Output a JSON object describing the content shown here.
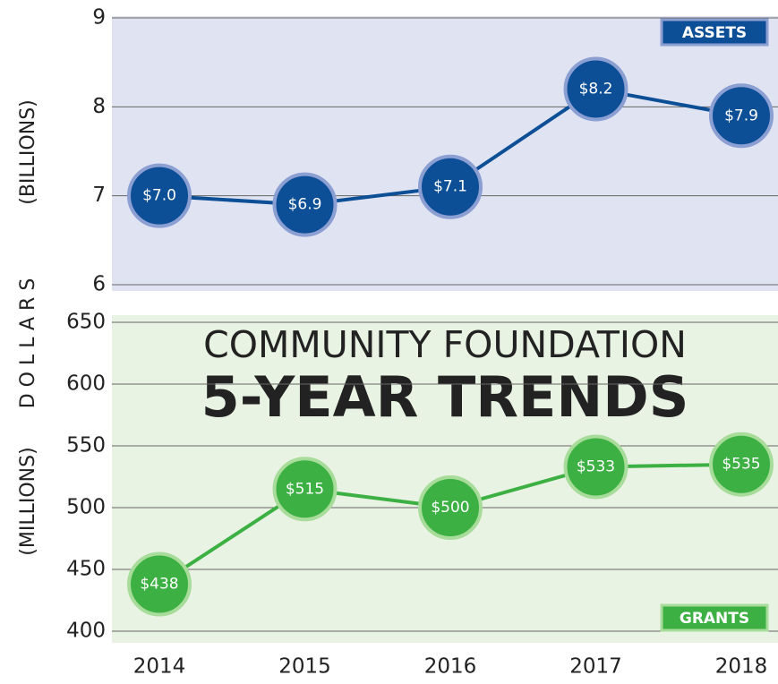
{
  "chart_data": [
    {
      "type": "line",
      "ylabel": "(BILLIONS)",
      "ylabel_common": "DOLLARS",
      "series": [
        {
          "name": "ASSETS",
          "color": "#0d4f96",
          "values": [
            7.0,
            6.9,
            7.1,
            8.2,
            7.9
          ],
          "value_labels": [
            "$7.0",
            "$6.9",
            "$7.1",
            "$8.2",
            "$7.9"
          ]
        }
      ],
      "ylim": [
        6,
        9
      ],
      "yticks": [
        6,
        7,
        8,
        9
      ],
      "grid": true,
      "legend": "upper right"
    },
    {
      "type": "line",
      "title": "COMMUNITY FOUNDATION",
      "subtitle": "5-YEAR TRENDS",
      "ylabel": "(MILLIONS)",
      "categories": [
        "2014",
        "2015",
        "2016",
        "2017",
        "2018"
      ],
      "series": [
        {
          "name": "GRANTS",
          "color": "#3cb043",
          "values": [
            438,
            515,
            500,
            533,
            535
          ],
          "value_labels": [
            "$438",
            "$515",
            "$500",
            "$533",
            "$535"
          ]
        }
      ],
      "ylim": [
        400,
        650
      ],
      "yticks": [
        400,
        450,
        500,
        550,
        600,
        650
      ],
      "grid": true,
      "legend": "lower right"
    }
  ]
}
